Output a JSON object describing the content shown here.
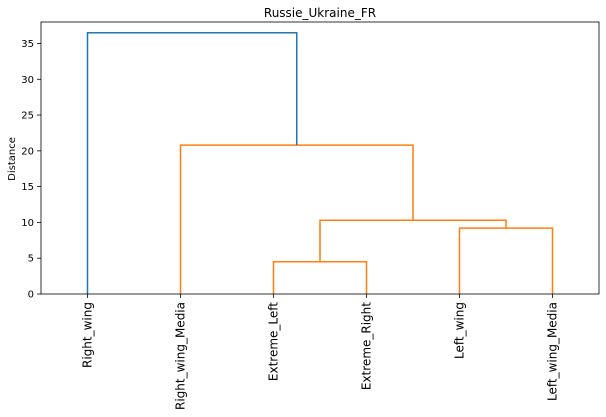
{
  "chart_data": {
    "type": "dendrogram",
    "title": "Russie_Ukraine_FR",
    "xlabel": "",
    "ylabel": "Distance",
    "ylim": [
      0,
      38
    ],
    "yticks": [
      0,
      5,
      10,
      15,
      20,
      25,
      30,
      35
    ],
    "grid": false,
    "leaves": [
      "Right_wing",
      "Right_wing_Media",
      "Extreme_Left",
      "Extreme_Right",
      "Left_wing",
      "Left_wing_Media"
    ],
    "colors": {
      "above_threshold": "#1f77b4",
      "cluster": "#ff7f0e"
    },
    "links": [
      {
        "left": 2,
        "right": 3,
        "distance": 4.5,
        "color": "#ff7f0e"
      },
      {
        "left": 4,
        "right": 5,
        "distance": 9.2,
        "color": "#ff7f0e"
      },
      {
        "left": 6,
        "right": 7,
        "distance": 10.3,
        "color": "#ff7f0e"
      },
      {
        "left": 1,
        "right": 8,
        "distance": 20.8,
        "color": "#ff7f0e"
      },
      {
        "left": 0,
        "right": 9,
        "distance": 36.5,
        "color": "#1f77b4"
      }
    ]
  }
}
